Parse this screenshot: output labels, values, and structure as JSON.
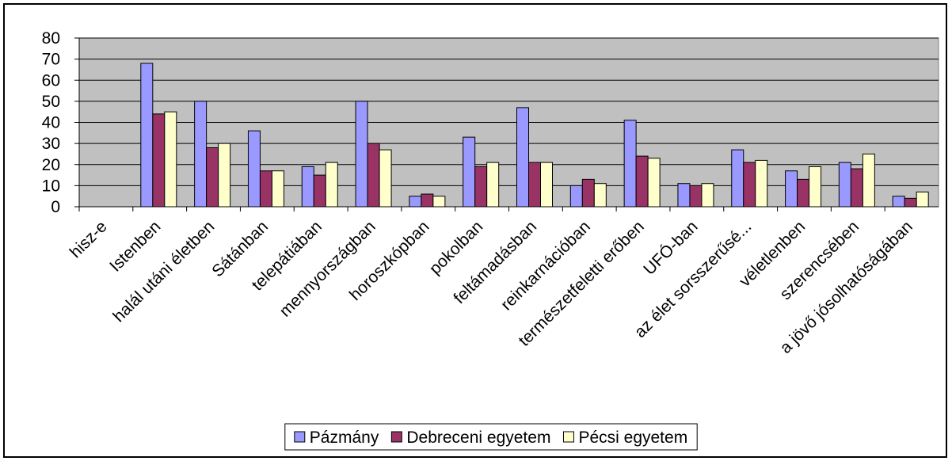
{
  "chart_data": {
    "type": "bar",
    "categories": [
      "hisz-e",
      "Istenben",
      "halál utáni életben",
      "Sátánban",
      "telepátiában",
      "mennyországban",
      "horoszkópban",
      "pokolban",
      "feltámadásban",
      "reinkarnációban",
      "természetfeletti erőben",
      "UFÓ-ban",
      "az élet sorsszerűsé...",
      "véletlenben",
      "szerencsében",
      "a jövő jósolhatóságában"
    ],
    "series": [
      {
        "name": "Pázmány",
        "color": "#9999ff",
        "values": [
          null,
          68,
          50,
          36,
          19,
          50,
          5,
          33,
          47,
          10,
          41,
          11,
          27,
          17,
          21,
          5
        ]
      },
      {
        "name": "Debreceni egyetem",
        "color": "#993366",
        "values": [
          null,
          44,
          28,
          17,
          15,
          30,
          6,
          19,
          21,
          13,
          24,
          10,
          21,
          13,
          18,
          4
        ]
      },
      {
        "name": "Pécsi egyetem",
        "color": "#ffffcc",
        "values": [
          null,
          45,
          30,
          17,
          21,
          27,
          5,
          21,
          21,
          11,
          23,
          11,
          22,
          19,
          25,
          7
        ]
      }
    ],
    "ylim": [
      0,
      80
    ],
    "yticks": [
      0,
      10,
      20,
      30,
      40,
      50,
      60,
      70,
      80
    ],
    "grid": true,
    "legend": "bottom",
    "background": "#c0c0c0"
  }
}
